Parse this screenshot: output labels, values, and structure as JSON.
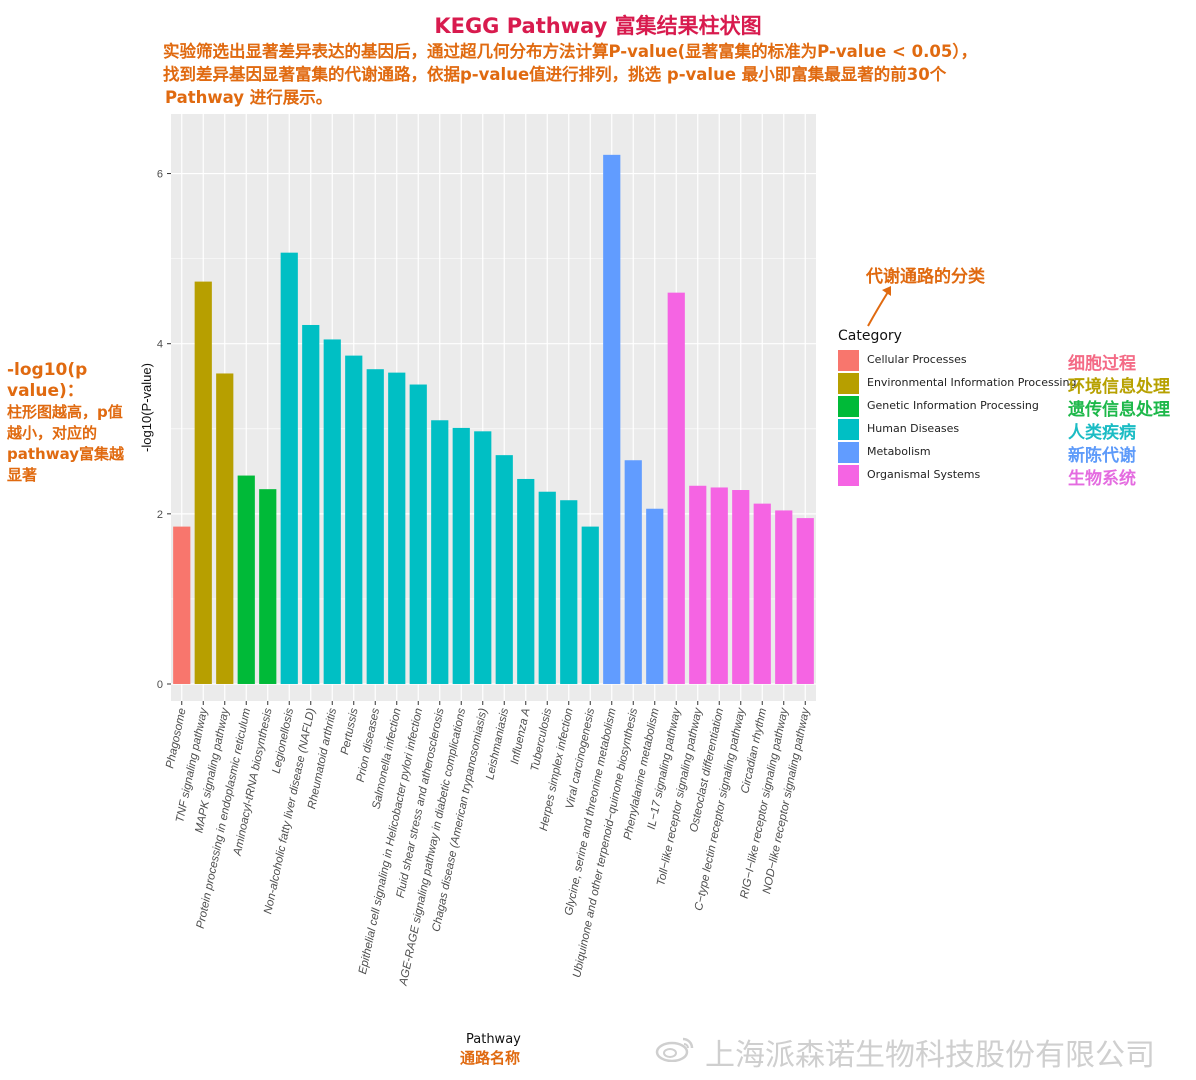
{
  "header": {
    "title": "KEGG Pathway 富集结果柱状图",
    "desc_line1": "实验筛选出显著差异表达的基因后，通过超几何分布方法计算P-value(显著富集的标准为P-value < 0.05），",
    "desc_line2": "找到差异基因显著富集的代谢通路，依据p-value值进行排列，挑选 p-value 最小即富集最显著的前30个",
    "desc_line3": "Pathway 进行展示。"
  },
  "annotations": {
    "left_line1": "-log10(p value)：",
    "left_line2": "柱形图越高，p值",
    "left_line3": "越小，对应的",
    "left_line4": "pathway富集越",
    "left_line5": "显著",
    "category_note": "代谢通路的分类",
    "xaxis_cn": "通路名称",
    "watermark": "上海派森诺生物科技股份有限公司"
  },
  "legend": {
    "title": "Category",
    "items": [
      {
        "label": "Cellular Processes",
        "cn": "细胞过程",
        "color": "#F8766D",
        "cn_color": "#F46B86"
      },
      {
        "label": "Environmental Information Processing",
        "cn": "环境信息处理",
        "color": "#B79F00",
        "cn_color": "#B7A100"
      },
      {
        "label": "Genetic Information Processing",
        "cn": "遗传信息处理",
        "color": "#00BA38",
        "cn_color": "#1DB84A"
      },
      {
        "label": "Human Diseases",
        "cn": "人类疾病",
        "color": "#00BFC4",
        "cn_color": "#1BBCC4"
      },
      {
        "label": "Metabolism",
        "cn": "新陈代谢",
        "color": "#619CFF",
        "cn_color": "#5E9BFA"
      },
      {
        "label": "Organismal Systems",
        "cn": "生物系统",
        "color": "#F564E3",
        "cn_color": "#E46BE0"
      }
    ]
  },
  "chart_data": {
    "type": "bar",
    "title": "",
    "xlabel": "Pathway",
    "ylabel": "-log10(P-value)",
    "ylim": [
      -0.2,
      6.7
    ],
    "yticks": [
      0,
      2,
      4,
      6
    ],
    "grid": true,
    "legend_position": "right",
    "categories": [
      "Phagosome",
      "TNF signaling pathway",
      "MAPK signaling pathway",
      "Protein processing in endoplasmic reticulum",
      "Aminoacyl-tRNA biosynthesis",
      "Legionellosis",
      "Non-alcoholic fatty liver disease (NAFLD)",
      "Rheumatoid arthritis",
      "Pertussis",
      "Prion diseases",
      "Salmonella infection",
      "Epithelial cell signaling in Helicobacter pylori infection",
      "Fluid shear stress and atherosclerosis",
      "AGE-RAGE signaling pathway in diabetic complications",
      "Chagas disease (American trypanosomiasis)",
      "Leishmaniasis",
      "Influenza A",
      "Tuberculosis",
      "Herpes simplex infection",
      "Viral carcinogenesis",
      "Glycine, serine and threonine metabolism",
      "Ubiquinone and other terpenoid−quinone biosynthesis",
      "Phenylalanine metabolism",
      "IL−17 signaling pathway",
      "Toll−like receptor signaling pathway",
      "Osteoclast differentiation",
      "C−type lectin receptor signaling pathway",
      "Circadian rhythm",
      "RIG−I−like receptor signaling pathway",
      "NOD−like receptor signaling pathway"
    ],
    "values": [
      1.85,
      4.73,
      3.65,
      2.45,
      2.29,
      5.07,
      4.22,
      4.05,
      3.86,
      3.7,
      3.66,
      3.52,
      3.1,
      3.01,
      2.97,
      2.69,
      2.41,
      2.26,
      2.16,
      1.85,
      6.22,
      2.63,
      2.06,
      4.6,
      2.33,
      2.31,
      2.28,
      2.12,
      2.04,
      1.95
    ],
    "groups": [
      "Cellular Processes",
      "Environmental Information Processing",
      "Environmental Information Processing",
      "Genetic Information Processing",
      "Genetic Information Processing",
      "Human Diseases",
      "Human Diseases",
      "Human Diseases",
      "Human Diseases",
      "Human Diseases",
      "Human Diseases",
      "Human Diseases",
      "Human Diseases",
      "Human Diseases",
      "Human Diseases",
      "Human Diseases",
      "Human Diseases",
      "Human Diseases",
      "Human Diseases",
      "Human Diseases",
      "Metabolism",
      "Metabolism",
      "Metabolism",
      "Organismal Systems",
      "Organismal Systems",
      "Organismal Systems",
      "Organismal Systems",
      "Organismal Systems",
      "Organismal Systems",
      "Organismal Systems"
    ]
  }
}
